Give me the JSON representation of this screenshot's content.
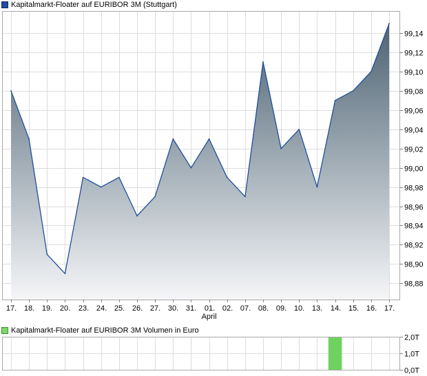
{
  "chart_data": [
    {
      "type": "area",
      "legend": "Kapitalmarkt-Floater auf EURIBOR 3M (Stuttgart)",
      "legend_color": "#1f4e9c",
      "x_tick_labels": [
        "17.",
        "18.",
        "19.",
        "20.",
        "23.",
        "24.",
        "25.",
        "26.",
        "27.",
        "30.",
        "31.",
        "01.",
        "02.",
        "07.",
        "08.",
        "09.",
        "10.",
        "13.",
        "14.",
        "15.",
        "16.",
        "17."
      ],
      "month_label": "April",
      "values": [
        99.08,
        99.03,
        98.91,
        98.89,
        98.99,
        98.98,
        98.99,
        98.95,
        98.97,
        99.03,
        99.0,
        99.03,
        98.99,
        98.97,
        99.11,
        99.02,
        99.04,
        98.98,
        99.07,
        99.08,
        99.1,
        99.15
      ],
      "y_tick_values": [
        98.88,
        98.9,
        98.92,
        98.94,
        98.96,
        98.98,
        99.0,
        99.02,
        99.04,
        99.06,
        99.08,
        99.1,
        99.12,
        99.14
      ],
      "y_tick_labels": [
        "98,88",
        "98,90",
        "98,92",
        "98,94",
        "98,96",
        "98,98",
        "99,00",
        "99,02",
        "99,04",
        "99,06",
        "99,08",
        "99,10",
        "99,12",
        "99,14"
      ],
      "ylim": [
        98.863,
        99.163
      ],
      "grid": true,
      "line_color": "#1f4e9c",
      "fill_top_color": "#4d6373",
      "fill_bottom_color": "#f5f6f8"
    },
    {
      "type": "bar",
      "legend": "Kapitalmarkt-Floater auf EURIBOR 3M Volumen in Euro",
      "legend_color": "#7ed66a",
      "values": [
        0,
        0,
        0,
        0,
        0,
        0,
        0,
        0,
        0,
        0,
        0,
        0,
        0,
        0,
        0,
        0,
        0,
        0,
        2.0,
        0,
        0,
        0
      ],
      "y_tick_values": [
        0,
        1.0,
        2.0
      ],
      "y_tick_labels": [
        "0,0T",
        "1,0T",
        "2,0T"
      ],
      "ylim": [
        0,
        2.0
      ],
      "grid": true,
      "bar_color": "#6fd15f"
    }
  ]
}
